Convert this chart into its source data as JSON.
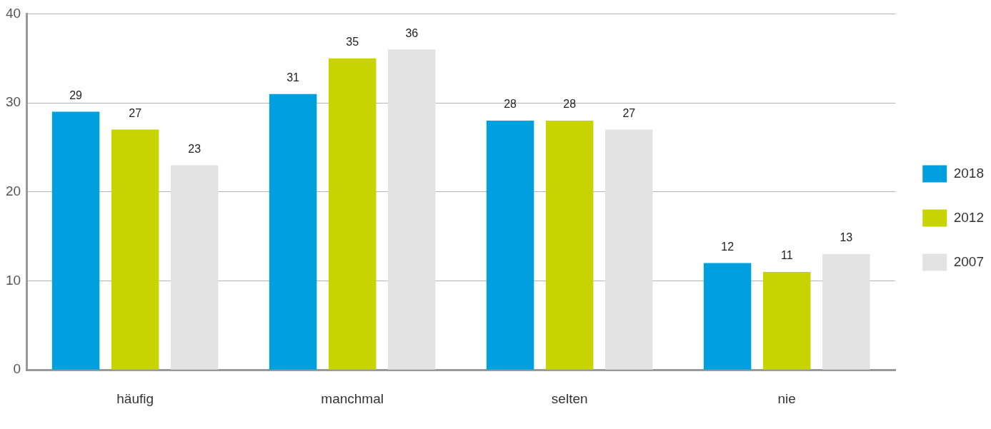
{
  "chart_data": {
    "type": "bar",
    "categories": [
      "häufig",
      "manchmal",
      "selten",
      "nie"
    ],
    "series": [
      {
        "name": "2018",
        "color": "#009fe0",
        "values": [
          29,
          31,
          28,
          12
        ]
      },
      {
        "name": "2012",
        "color": "#c8d400",
        "values": [
          27,
          35,
          28,
          11
        ]
      },
      {
        "name": "2007",
        "color": "#e3e3e3",
        "values": [
          23,
          36,
          27,
          13
        ]
      }
    ],
    "ylim": [
      0,
      40
    ],
    "yticks": [
      0,
      10,
      20,
      30,
      40
    ],
    "grid": "y",
    "legend": "right",
    "data_labels": true
  }
}
